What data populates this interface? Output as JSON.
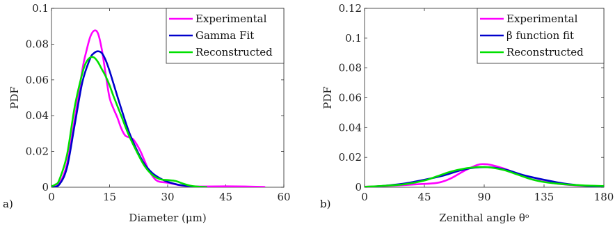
{
  "chart_data": [
    {
      "type": "line",
      "panel_label": "a)",
      "xlabel": "Diameter (μm)",
      "ylabel": "PDF",
      "xlim": [
        0,
        60
      ],
      "ylim": [
        0,
        0.1
      ],
      "xticks": [
        0,
        15,
        30,
        45,
        60
      ],
      "xtick_labels": [
        "0",
        "15",
        "30",
        "45",
        "60"
      ],
      "yticks": [
        0,
        0.02,
        0.04,
        0.06,
        0.08,
        0.1
      ],
      "ytick_labels": [
        "0",
        "0.02",
        "0.04",
        "0.06",
        "0.08",
        "0.1"
      ],
      "legend_position": "top-right",
      "series": [
        {
          "name": "Experimental",
          "color": "#ff00ff",
          "x": [
            0,
            2,
            4,
            6,
            8,
            9,
            10,
            11,
            12,
            13,
            14,
            15,
            16,
            17,
            18,
            19,
            20,
            21,
            22,
            23,
            24,
            25,
            26,
            27,
            28,
            30,
            33,
            36,
            40,
            45,
            50,
            55
          ],
          "y": [
            0.0005,
            0.002,
            0.013,
            0.038,
            0.066,
            0.076,
            0.084,
            0.0875,
            0.086,
            0.077,
            0.063,
            0.05,
            0.044,
            0.039,
            0.033,
            0.029,
            0.028,
            0.027,
            0.024,
            0.02,
            0.015,
            0.01,
            0.0065,
            0.004,
            0.003,
            0.0025,
            0.0012,
            0.0005,
            0.0004,
            0.0005,
            0.0004,
            0.0002
          ]
        },
        {
          "name": "Gamma Fit",
          "color": "#0000cc",
          "x": [
            0,
            2,
            4,
            6,
            8,
            10,
            11,
            12,
            13,
            14,
            15,
            16,
            18,
            20,
            22,
            24,
            26,
            28,
            30,
            33,
            36,
            40
          ],
          "y": [
            0,
            0.0015,
            0.011,
            0.035,
            0.059,
            0.072,
            0.075,
            0.076,
            0.075,
            0.071,
            0.065,
            0.058,
            0.044,
            0.031,
            0.021,
            0.013,
            0.008,
            0.005,
            0.003,
            0.0013,
            0.0005,
            0.0001
          ]
        },
        {
          "name": "Reconstructed",
          "color": "#00e000",
          "x": [
            0,
            1,
            2,
            4,
            6,
            8,
            9,
            10,
            11,
            12,
            13,
            14,
            15,
            16,
            18,
            20,
            22,
            24,
            26,
            28,
            30,
            32,
            34,
            36,
            38,
            40
          ],
          "y": [
            0.0005,
            0.0015,
            0.004,
            0.018,
            0.045,
            0.064,
            0.07,
            0.0725,
            0.0725,
            0.07,
            0.066,
            0.062,
            0.057,
            0.051,
            0.04,
            0.029,
            0.02,
            0.012,
            0.007,
            0.0045,
            0.004,
            0.0035,
            0.002,
            0.0008,
            0.0003,
            0.0001
          ]
        }
      ]
    },
    {
      "type": "line",
      "panel_label": "b)",
      "xlabel": "Zenithal angle θᵒ",
      "ylabel": "PDF",
      "xlim": [
        0,
        180
      ],
      "ylim": [
        0,
        0.12
      ],
      "xticks": [
        0,
        45,
        90,
        135,
        180
      ],
      "xtick_labels": [
        "0",
        "45",
        "90",
        "135",
        "180"
      ],
      "yticks": [
        0,
        0.02,
        0.04,
        0.06,
        0.08,
        0.1,
        0.12
      ],
      "ytick_labels": [
        "0",
        "0.02",
        "0.04",
        "0.06",
        "0.08",
        "0.1",
        "0.12"
      ],
      "legend_position": "top-right",
      "series": [
        {
          "name": "Experimental",
          "color": "#ff00ff",
          "x": [
            0,
            20,
            40,
            55,
            65,
            75,
            85,
            90,
            95,
            105,
            115,
            125,
            140,
            155,
            170,
            180
          ],
          "y": [
            0.0003,
            0.001,
            0.002,
            0.003,
            0.006,
            0.011,
            0.015,
            0.0155,
            0.015,
            0.0125,
            0.009,
            0.0055,
            0.003,
            0.0015,
            0.0007,
            0.0004
          ]
        },
        {
          "name": "β function fit",
          "color": "#0000cc",
          "x": [
            0,
            15,
            30,
            45,
            60,
            75,
            90,
            105,
            120,
            135,
            150,
            165,
            180
          ],
          "y": [
            0,
            0.001,
            0.0025,
            0.005,
            0.008,
            0.012,
            0.0135,
            0.012,
            0.008,
            0.005,
            0.0025,
            0.001,
            0
          ]
        },
        {
          "name": "Reconstructed",
          "color": "#00e000",
          "x": [
            0,
            15,
            30,
            45,
            55,
            65,
            75,
            85,
            90,
            95,
            105,
            115,
            125,
            135,
            150,
            165,
            180
          ],
          "y": [
            0.0003,
            0.001,
            0.002,
            0.0045,
            0.0075,
            0.0105,
            0.0125,
            0.0135,
            0.0135,
            0.0132,
            0.0115,
            0.0085,
            0.0055,
            0.0035,
            0.002,
            0.0012,
            0.0008
          ]
        }
      ]
    }
  ]
}
